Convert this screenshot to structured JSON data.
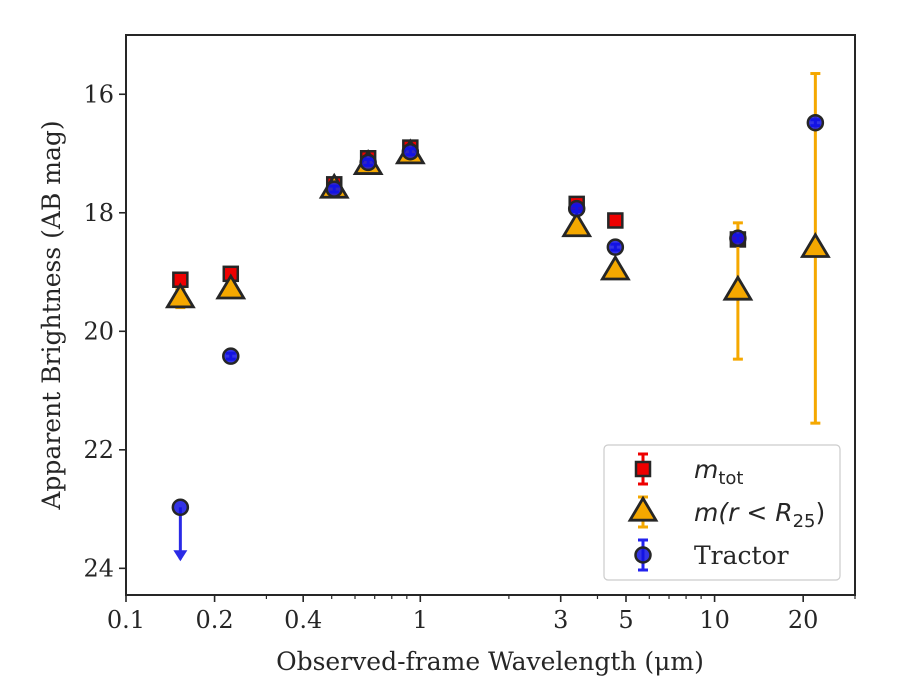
{
  "chart_data": {
    "type": "scatter",
    "xlabel": "Observed-frame Wavelength (μm)",
    "ylabel": "Apparent Brightness (AB mag)",
    "xscale": "log",
    "xlim": [
      0.1,
      30
    ],
    "ylim": [
      24.45,
      15.0
    ],
    "y_inverted": true,
    "xticks": [
      0.1,
      0.2,
      0.4,
      1,
      3,
      5,
      10,
      20
    ],
    "xtick_labels": [
      "0.1",
      "0.2",
      "0.4",
      "1",
      "3",
      "5",
      "10",
      "20"
    ],
    "yticks": [
      16,
      18,
      20,
      22,
      24
    ],
    "ytick_labels": [
      "16",
      "18",
      "20",
      "22",
      "24"
    ],
    "grid": false,
    "legend_position": "lower-right",
    "series": [
      {
        "name": "m_tot",
        "legend_text": "m",
        "legend_sub": "tot",
        "marker": "square",
        "color": "#ee0000",
        "edge": "#262626",
        "points": [
          {
            "x": 0.153,
            "y": 19.13,
            "err": 0.1
          },
          {
            "x": 0.227,
            "y": 19.03,
            "err": 0.08
          },
          {
            "x": 0.51,
            "y": 17.52,
            "err": 0.05
          },
          {
            "x": 0.665,
            "y": 17.08,
            "err": 0.05
          },
          {
            "x": 0.925,
            "y": 16.9,
            "err": 0.05
          },
          {
            "x": 3.4,
            "y": 17.85,
            "err": 0.08
          },
          {
            "x": 4.6,
            "y": 18.13,
            "err": 0.08
          },
          {
            "x": 12.0,
            "y": 18.45,
            "err": 0.1
          }
        ]
      },
      {
        "name": "m(r<R25)",
        "legend_text": "m(r < R",
        "legend_sub": "25",
        "legend_close": ")",
        "marker": "triangle",
        "color": "#f5a800",
        "edge": "#262626",
        "points": [
          {
            "x": 0.153,
            "y": 19.45,
            "err": 0.15
          },
          {
            "x": 0.227,
            "y": 19.3,
            "err": 0.1
          },
          {
            "x": 0.51,
            "y": 17.6,
            "err": 0.05
          },
          {
            "x": 0.665,
            "y": 17.2,
            "err": 0.05
          },
          {
            "x": 0.925,
            "y": 17.02,
            "err": 0.05
          },
          {
            "x": 3.4,
            "y": 18.25,
            "err": 0.1
          },
          {
            "x": 4.6,
            "y": 18.98,
            "err": 0.1
          },
          {
            "x": 12.0,
            "y": 19.32,
            "err_low": 1.15,
            "err_high": 1.15
          },
          {
            "x": 22.0,
            "y": 18.6,
            "err_low": 2.95,
            "err_high": 2.95
          }
        ]
      },
      {
        "name": "Tractor",
        "legend_text": "Tractor",
        "marker": "circle",
        "color": "#1010e0",
        "edge": "#262626",
        "points": [
          {
            "x": 0.153,
            "y": 22.97,
            "upper_limit": true
          },
          {
            "x": 0.227,
            "y": 20.42,
            "err": 0.05
          },
          {
            "x": 0.51,
            "y": 17.6,
            "err": 0.05
          },
          {
            "x": 0.665,
            "y": 17.15,
            "err": 0.05
          },
          {
            "x": 0.925,
            "y": 16.97,
            "err": 0.05
          },
          {
            "x": 3.4,
            "y": 17.93,
            "err": 0.05
          },
          {
            "x": 4.6,
            "y": 18.58,
            "err": 0.05
          },
          {
            "x": 12.0,
            "y": 18.43,
            "err": 0.05
          },
          {
            "x": 22.0,
            "y": 16.48,
            "err": 0.05
          }
        ]
      }
    ]
  }
}
